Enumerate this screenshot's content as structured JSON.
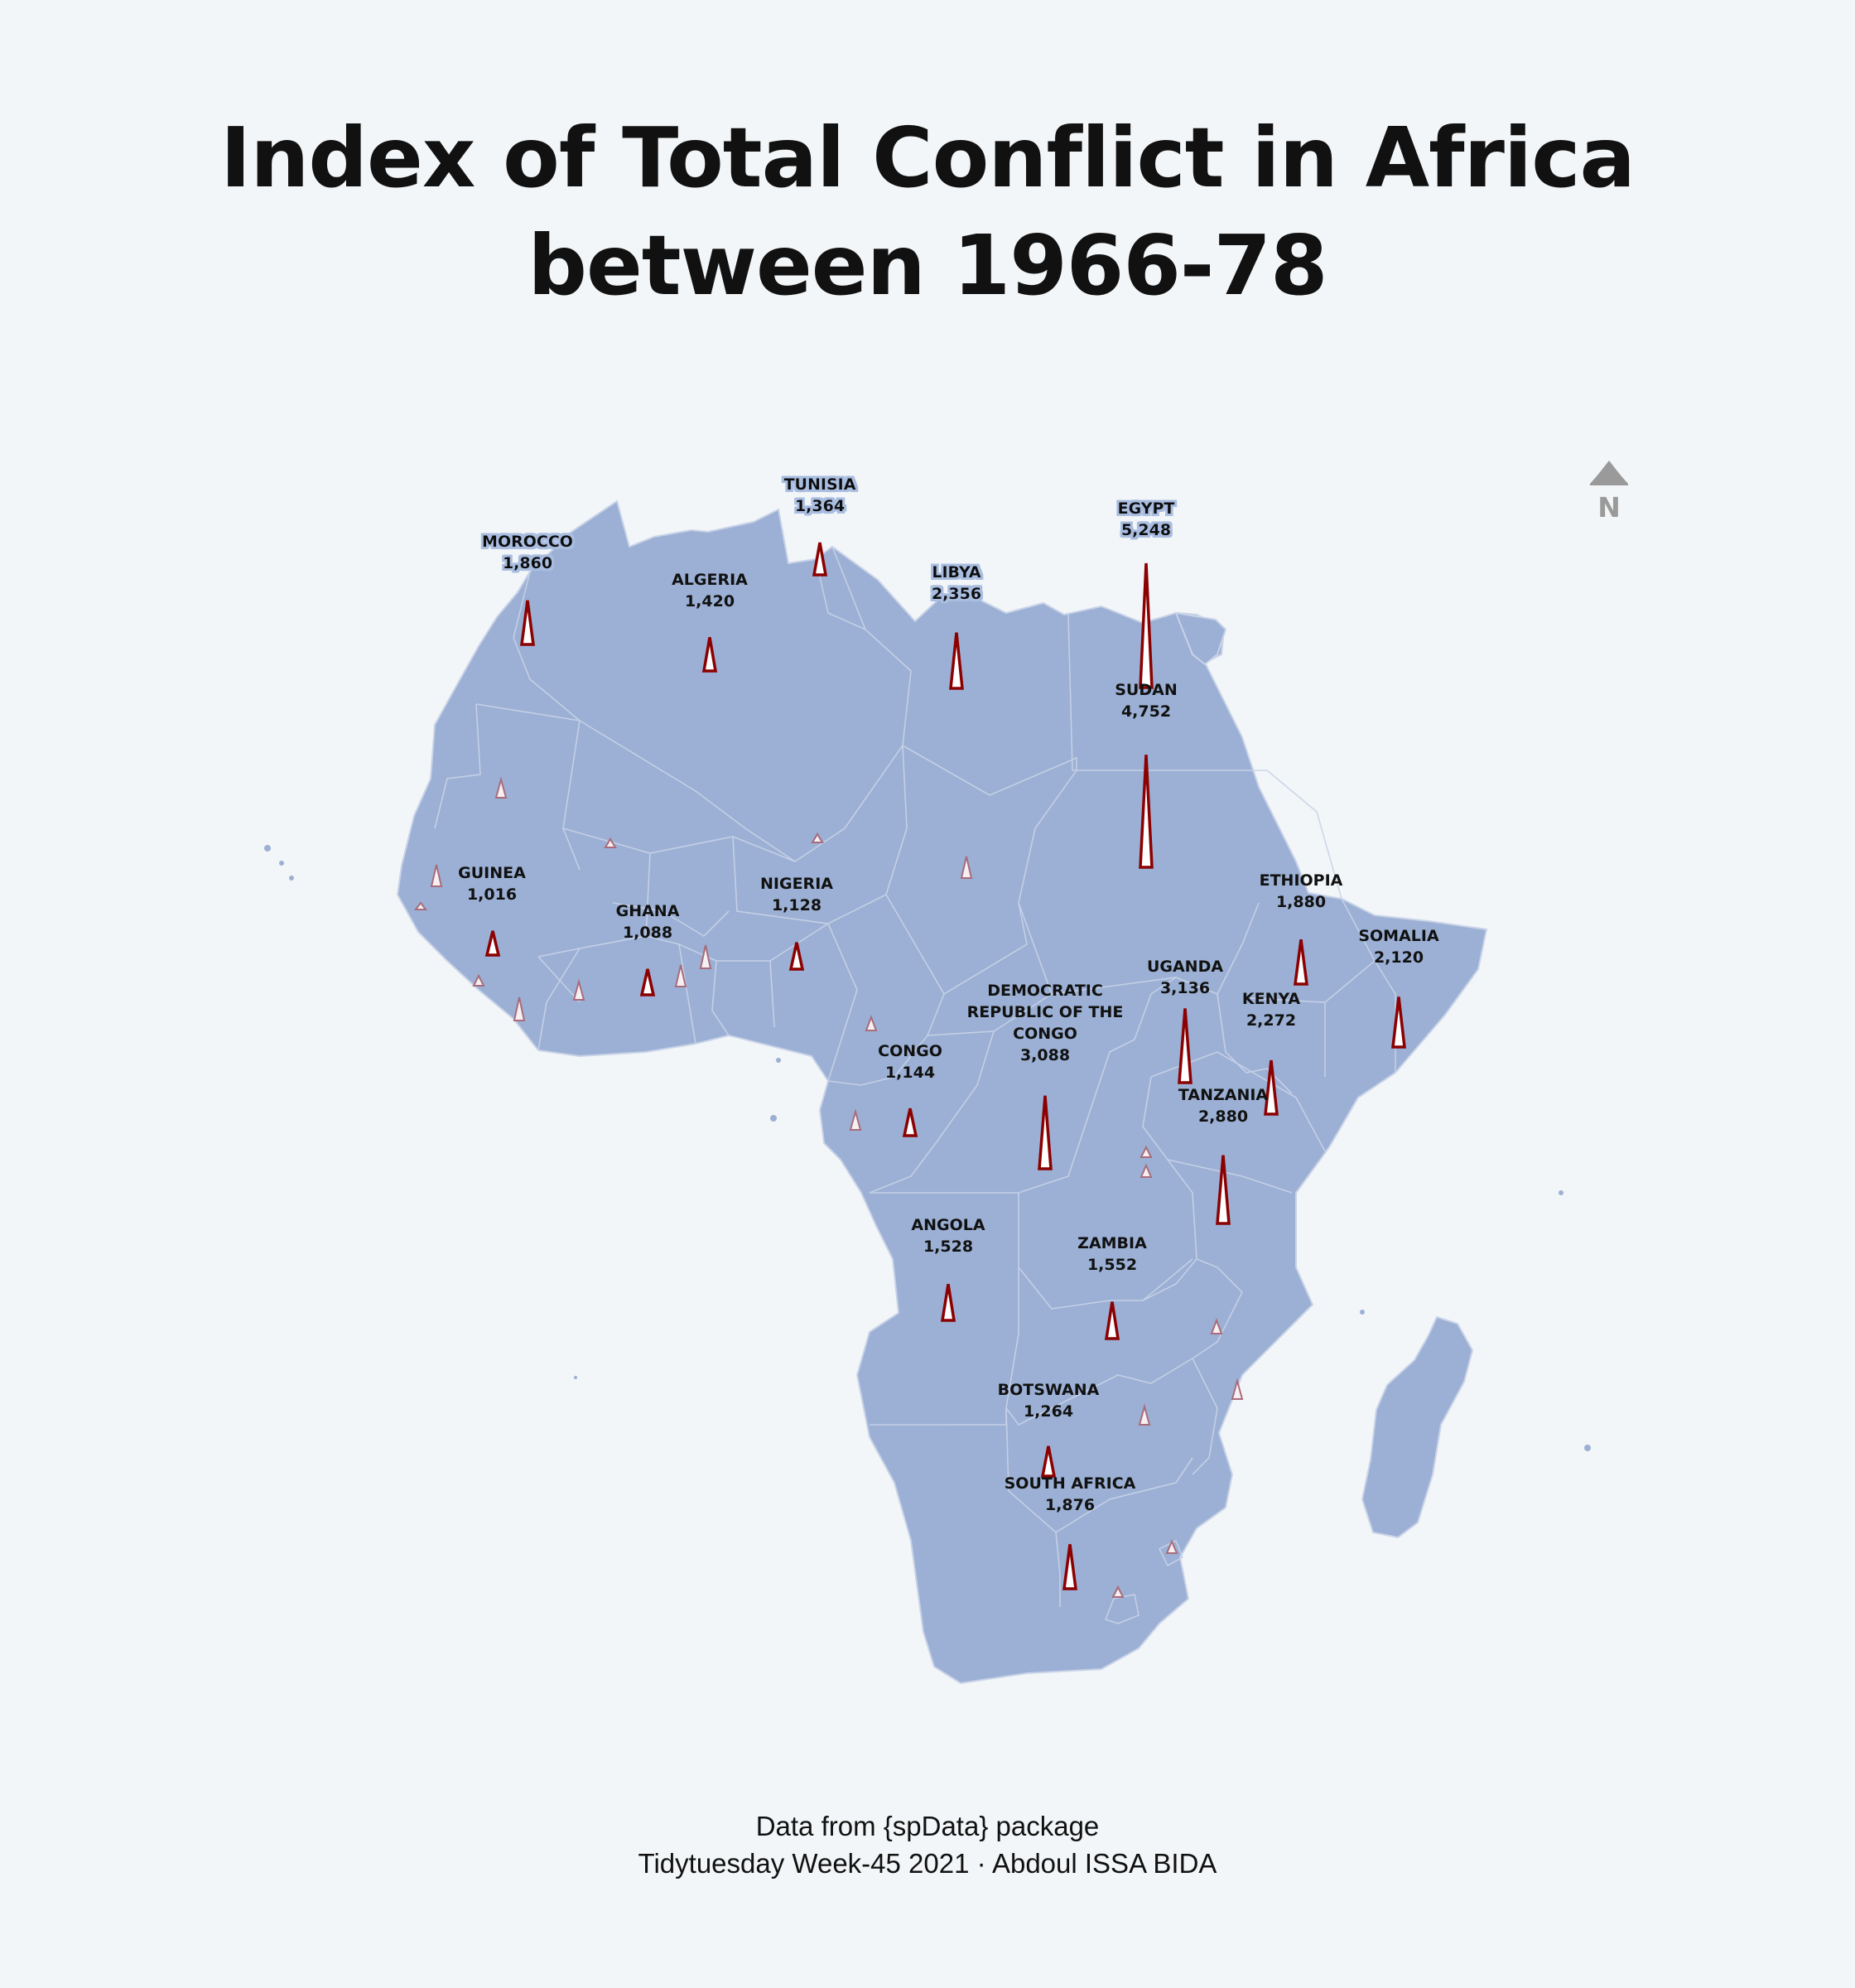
{
  "title_line_1": "Index of Total Conflict in Africa",
  "title_line_2": "between 1966-78",
  "caption_line_1": "Data from {spData} package",
  "caption_line_2": "Tidytuesday Week-45 2021 · Abdoul ISSA BIDA",
  "north_arrow": {
    "icon": "north-arrow-icon",
    "label": "N"
  },
  "colors": {
    "background": "#f3f6f8",
    "land": "#9bb0d4",
    "border": "#c9d3e8",
    "spike_stroke": "#8b0000",
    "spike_fill": "#ffffff",
    "minor_spike_stroke": "#a86c7c",
    "north_arrow": "#9a9a9a"
  },
  "chart_data": {
    "type": "spike-map",
    "value_name": "Index of Total Conflict",
    "labeled_countries": [
      {
        "name": "MOROCCO",
        "value": 1860,
        "label": "1,860"
      },
      {
        "name": "TUNISIA",
        "value": 1364,
        "label": "1,364"
      },
      {
        "name": "ALGERIA",
        "value": 1420,
        "label": "1,420"
      },
      {
        "name": "LIBYA",
        "value": 2356,
        "label": "2,356"
      },
      {
        "name": "EGYPT",
        "value": 5248,
        "label": "5,248"
      },
      {
        "name": "SUDAN",
        "value": 4752,
        "label": "4,752"
      },
      {
        "name": "GUINEA",
        "value": 1016,
        "label": "1,016"
      },
      {
        "name": "GHANA",
        "value": 1088,
        "label": "1,088"
      },
      {
        "name": "NIGERIA",
        "value": 1128,
        "label": "1,128"
      },
      {
        "name": "ETHIOPIA",
        "value": 1880,
        "label": "1,880"
      },
      {
        "name": "SOMALIA",
        "value": 2120,
        "label": "2,120"
      },
      {
        "name": "UGANDA",
        "value": 3136,
        "label": "3,136"
      },
      {
        "name": "KENYA",
        "value": 2272,
        "label": "2,272"
      },
      {
        "name": "DEMOCRATIC REPUBLIC OF THE CONGO",
        "value": 3088,
        "label": "3,088"
      },
      {
        "name": "CONGO",
        "value": 1144,
        "label": "1,144"
      },
      {
        "name": "TANZANIA",
        "value": 2880,
        "label": "2,880"
      },
      {
        "name": "ANGOLA",
        "value": 1528,
        "label": "1,528"
      },
      {
        "name": "ZAMBIA",
        "value": 1552,
        "label": "1,552"
      },
      {
        "name": "BOTSWANA",
        "value": 1264,
        "label": "1,264"
      },
      {
        "name": "SOUTH AFRICA",
        "value": 1876,
        "label": "1,876"
      }
    ],
    "unlabeled_spikes": 20
  }
}
